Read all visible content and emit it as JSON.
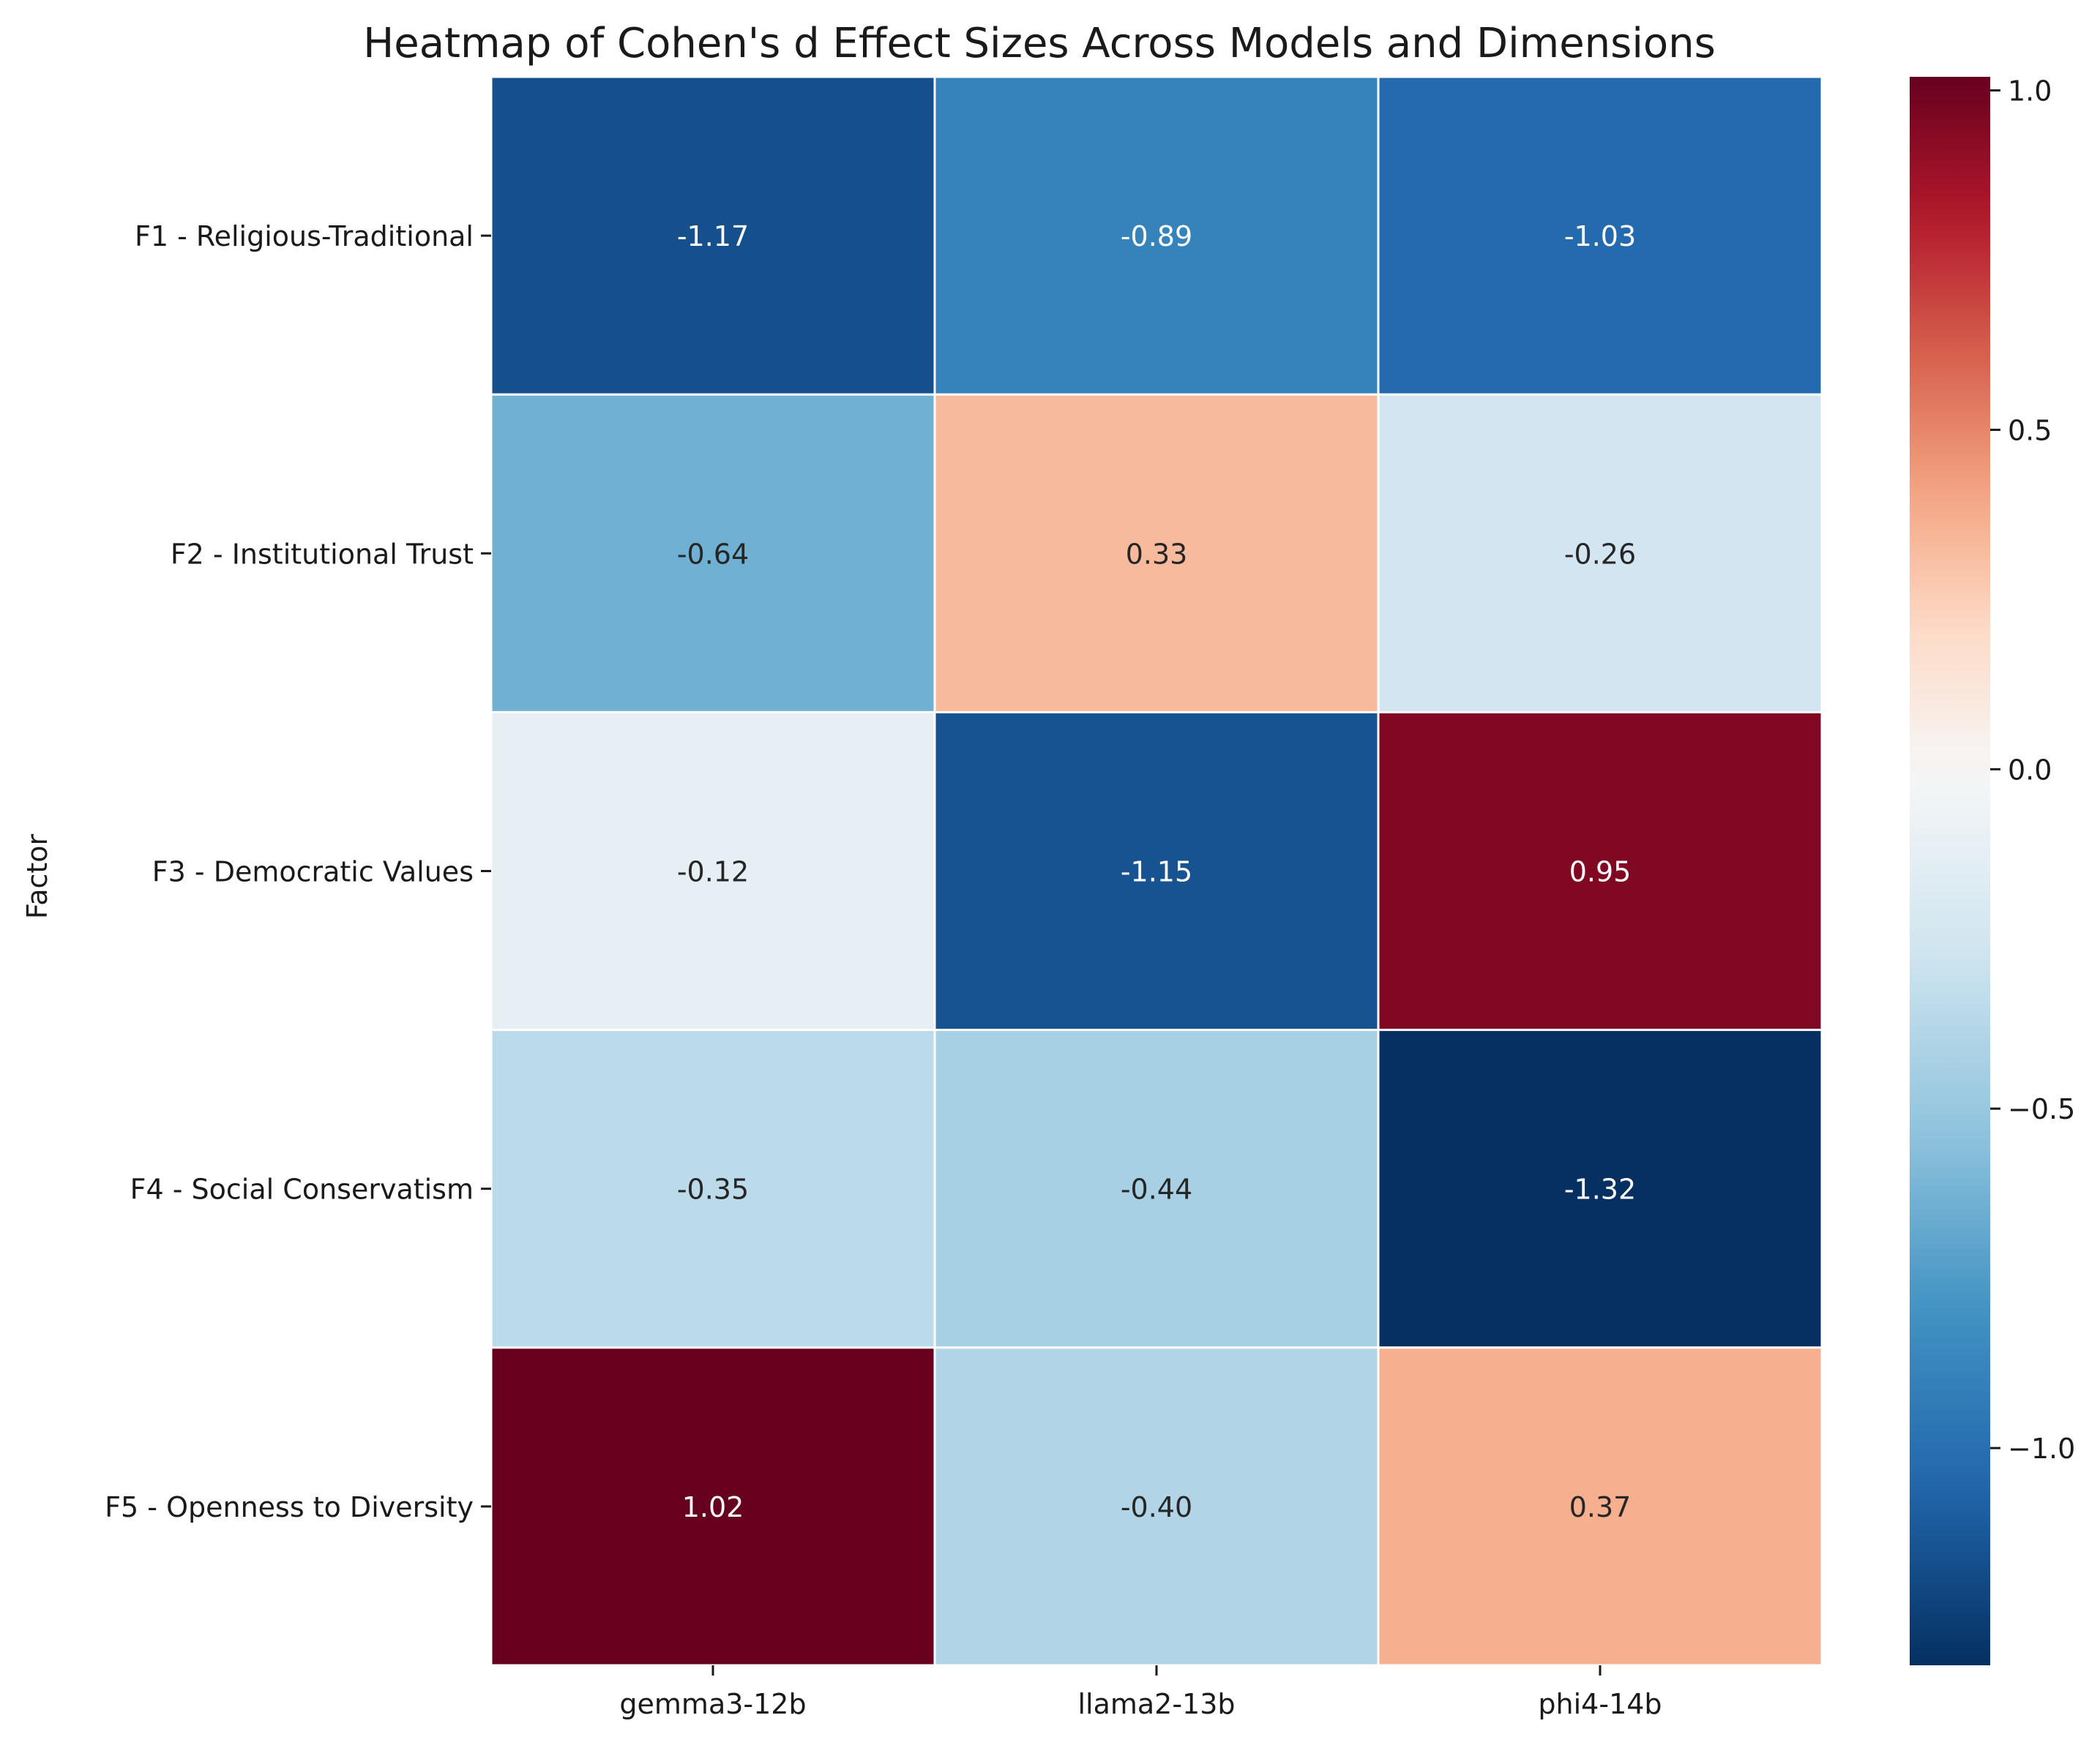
{
  "chart_data": {
    "type": "heatmap",
    "title": "Heatmap of Cohen's d Effect Sizes Across Models and Dimensions",
    "xlabel": "",
    "ylabel": "Factor",
    "columns": [
      "gemma3-12b",
      "llama2-13b",
      "phi4-14b"
    ],
    "rows": [
      "F1 - Religious-Traditional",
      "F2 - Institutional Trust",
      "F3 - Democratic Values",
      "F4 - Social Conservatism",
      "F5 - Openness to Diversity"
    ],
    "values": [
      [
        -1.17,
        -0.89,
        -1.03
      ],
      [
        -0.64,
        0.33,
        -0.26
      ],
      [
        -0.12,
        -1.15,
        0.95
      ],
      [
        -0.35,
        -0.44,
        -1.32
      ],
      [
        1.02,
        -0.4,
        0.37
      ]
    ],
    "value_format": "0.00",
    "colormap": "RdBu_r",
    "colorbar": {
      "range": [
        -1.32,
        1.02
      ],
      "ticks": [
        1.0,
        0.5,
        0.0,
        -0.5,
        -1.0
      ],
      "tick_labels": [
        "1.0",
        "0.5",
        "0.0",
        "−0.5",
        "−1.0"
      ]
    },
    "gridlines": "white cell borders"
  }
}
